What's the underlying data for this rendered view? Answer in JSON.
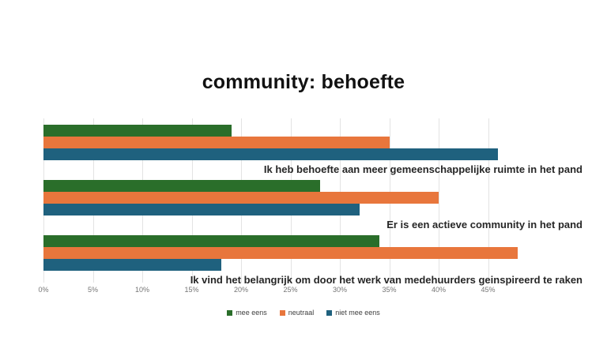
{
  "chart_data": {
    "type": "bar",
    "orientation": "horizontal",
    "title": "community: behoefte",
    "categories": [
      "Ik heb behoefte aan meer gemeenschappelijke ruimte in het pand",
      "Er is een actieve community in het pand",
      "Ik vind het belangrijk om door het werk van medehuurders geinspireerd te raken"
    ],
    "series": [
      {
        "name": "mee eens",
        "color": "#2A6E2A",
        "values": [
          19,
          28,
          34
        ]
      },
      {
        "name": "neutraal",
        "color": "#E8763C",
        "values": [
          35,
          40,
          48
        ]
      },
      {
        "name": "niet mee eens",
        "color": "#1F617E",
        "values": [
          46,
          32,
          18
        ]
      }
    ],
    "x_ticks": [
      "0%",
      "5%",
      "10%",
      "15%",
      "20%",
      "25%",
      "30%",
      "35%",
      "40%",
      "45%"
    ],
    "xlim": [
      0,
      45
    ],
    "unit": "percent",
    "grid": "vertical",
    "legend_position": "bottom"
  }
}
